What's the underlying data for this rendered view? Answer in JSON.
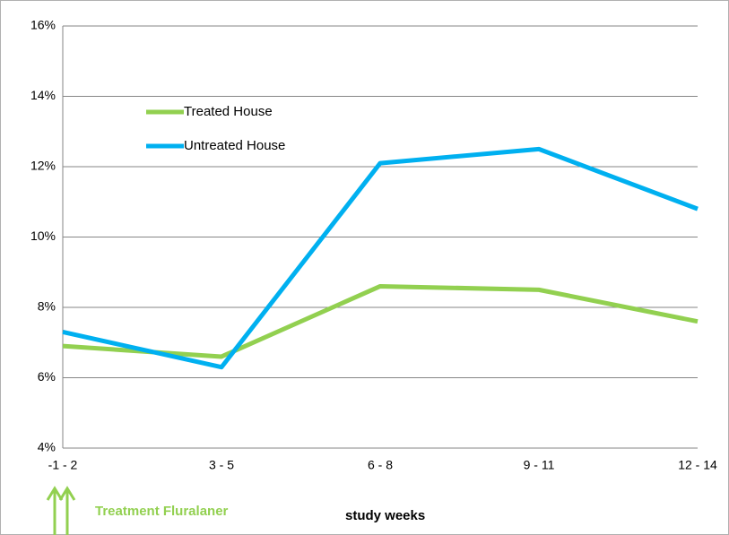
{
  "chart_data": {
    "type": "line",
    "categories": [
      "-1 - 2",
      "3 - 5",
      "6 - 8",
      "9 - 11",
      "12 - 14"
    ],
    "series": [
      {
        "name": "Treated House",
        "color": "#92d050",
        "values": [
          6.9,
          6.6,
          8.6,
          8.5,
          7.6
        ]
      },
      {
        "name": "Untreated House",
        "color": "#00b0f0",
        "values": [
          7.3,
          6.3,
          12.1,
          12.5,
          10.8
        ]
      }
    ],
    "ylim": [
      4,
      16
    ],
    "yticks": [
      {
        "value": 4,
        "label": "4%"
      },
      {
        "value": 6,
        "label": "6%"
      },
      {
        "value": 8,
        "label": "8%"
      },
      {
        "value": 10,
        "label": "10%"
      },
      {
        "value": 12,
        "label": "12%"
      },
      {
        "value": 14,
        "label": "14%"
      },
      {
        "value": 16,
        "label": "16%"
      }
    ],
    "grid": true,
    "xlabel": "study weeks",
    "annotation": "Treatment Fluralaner"
  }
}
